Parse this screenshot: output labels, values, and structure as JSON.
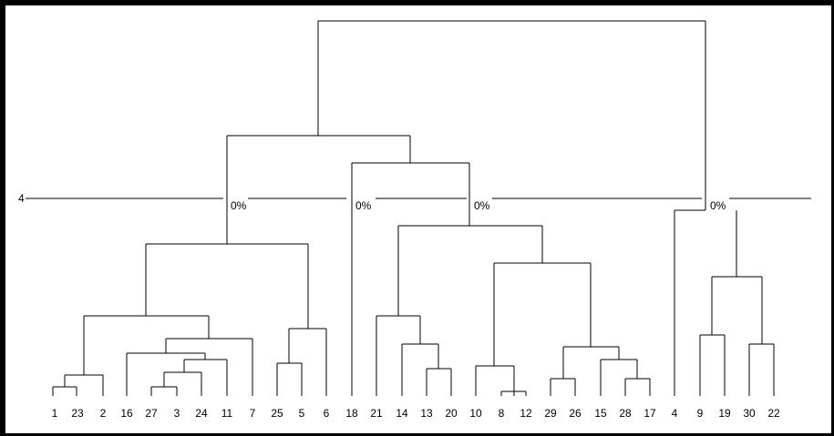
{
  "dendrogram": {
    "leaf_labels": [
      "1",
      "23",
      "2",
      "16",
      "27",
      "3",
      "24",
      "11",
      "7",
      "25",
      "5",
      "6",
      "18",
      "21",
      "14",
      "13",
      "20",
      "10",
      "8",
      "12",
      "29",
      "26",
      "15",
      "28",
      "17",
      "4",
      "9",
      "19",
      "30",
      "22"
    ],
    "threshold_line_label": "4",
    "percent_labels": [
      "0%",
      "0%",
      "0%",
      "0%"
    ]
  }
}
